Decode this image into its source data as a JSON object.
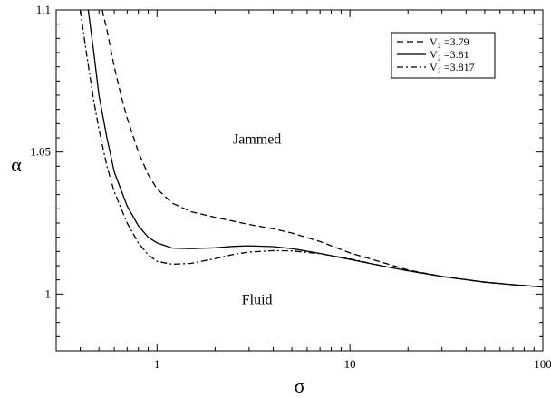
{
  "chart_data": {
    "type": "line",
    "xscale": "log",
    "xlim": [
      0.3,
      100
    ],
    "ylim": [
      0.98,
      1.1
    ],
    "xlabel": "σ",
    "ylabel": "α",
    "xticks": [
      {
        "value": 1,
        "label": "1"
      },
      {
        "value": 10,
        "label": "10"
      },
      {
        "value": 100,
        "label": "100"
      }
    ],
    "yticks": [
      {
        "value": 1.0,
        "label": "1"
      },
      {
        "value": 1.05,
        "label": "1.05"
      },
      {
        "value": 1.1,
        "label": "1.1"
      }
    ],
    "grid": false,
    "legend_position": "top-right",
    "annotations": [
      {
        "text": "Jammed",
        "x": 3.3,
        "y": 1.053
      },
      {
        "text": "Fluid",
        "x": 3.3,
        "y": 0.9965
      }
    ],
    "series": [
      {
        "name": "V₂ =3.79",
        "style": "dashed",
        "x": [
          0.52,
          0.55,
          0.6,
          0.65,
          0.7,
          0.8,
          0.9,
          1.0,
          1.2,
          1.5,
          2.0,
          3.0,
          4.0,
          5.0,
          7.0,
          10,
          15,
          20,
          30,
          50,
          70,
          100
        ],
        "y": [
          1.1,
          1.093,
          1.08,
          1.07,
          1.062,
          1.05,
          1.042,
          1.037,
          1.032,
          1.029,
          1.027,
          1.0245,
          1.023,
          1.0215,
          1.0185,
          1.0145,
          1.011,
          1.0085,
          1.0062,
          1.0042,
          1.0033,
          1.0025
        ]
      },
      {
        "name": "V₂ =3.81",
        "style": "solid",
        "x": [
          0.44,
          0.47,
          0.5,
          0.55,
          0.6,
          0.7,
          0.8,
          0.9,
          1.0,
          1.2,
          1.5,
          2.0,
          2.5,
          3.0,
          4.0,
          5.0,
          7.0,
          10,
          15,
          20,
          30,
          50,
          70,
          100
        ],
        "y": [
          1.1,
          1.085,
          1.07,
          1.055,
          1.043,
          1.031,
          1.024,
          1.02,
          1.018,
          1.0162,
          1.016,
          1.0163,
          1.0168,
          1.017,
          1.0167,
          1.016,
          1.0143,
          1.0122,
          1.0098,
          1.0082,
          1.0062,
          1.0042,
          1.0033,
          1.0025
        ]
      },
      {
        "name": "V₂ =3.817",
        "style": "dashdot",
        "x": [
          0.4,
          0.43,
          0.47,
          0.5,
          0.55,
          0.6,
          0.7,
          0.8,
          0.9,
          1.0,
          1.2,
          1.5,
          2.0,
          2.5,
          3.0,
          4.0,
          5.0,
          7.0,
          10,
          15,
          20,
          30,
          50,
          70,
          100
        ],
        "y": [
          1.1,
          1.085,
          1.068,
          1.058,
          1.045,
          1.036,
          1.025,
          1.018,
          1.0138,
          1.0115,
          1.0105,
          1.0108,
          1.0125,
          1.014,
          1.0148,
          1.0153,
          1.0152,
          1.0142,
          1.0124,
          1.0098,
          1.0082,
          1.0062,
          1.0042,
          1.0033,
          1.0025
        ]
      }
    ]
  }
}
